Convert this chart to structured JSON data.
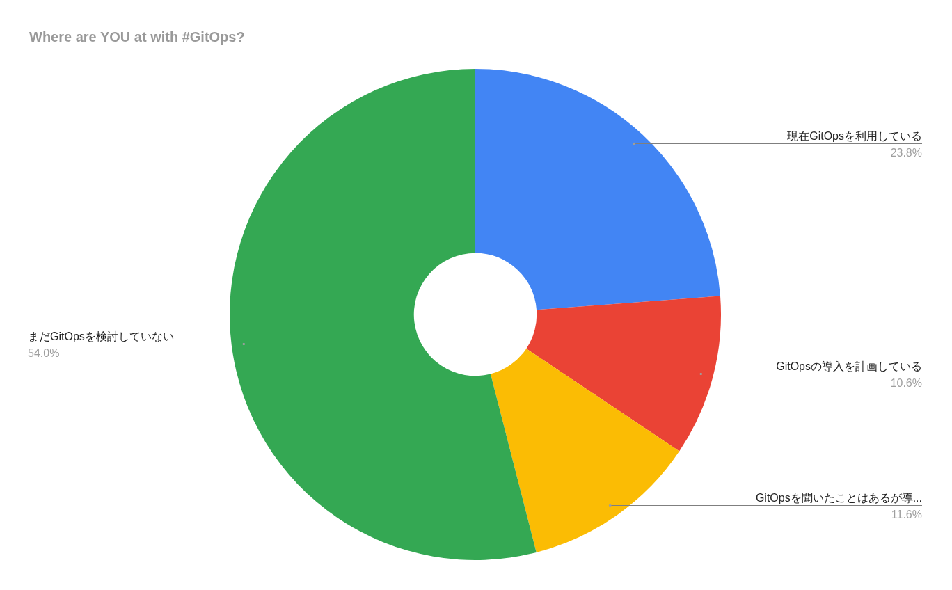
{
  "chart_data": {
    "type": "donut",
    "title": "Where are YOU at with #GitOps?",
    "categories": [
      "現在GitOpsを利用している",
      "GitOpsの導入を計画している",
      "GitOpsを聞いたことはあるが導...",
      "まだGitOpsを検討していない"
    ],
    "values": [
      23.8,
      10.6,
      11.6,
      54.0
    ],
    "colors": [
      "#4285f4",
      "#ea4335",
      "#fbbc04",
      "#34a853"
    ],
    "value_labels": [
      "23.8%",
      "10.6%",
      "11.6%",
      "54.0%"
    ]
  }
}
